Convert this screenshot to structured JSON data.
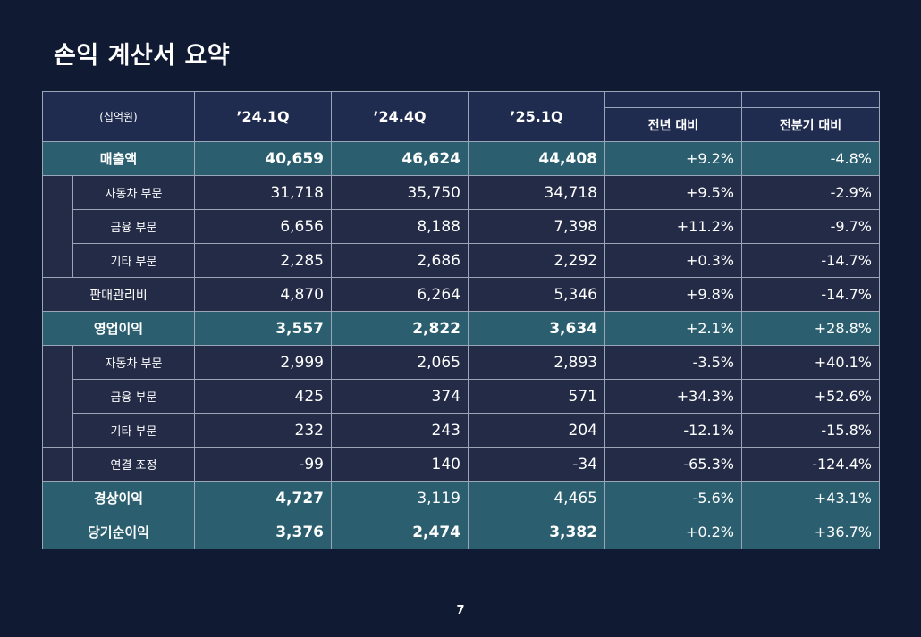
{
  "title": "손익 계산서 요약",
  "page_number": "7",
  "header": {
    "unit": "(십억원)",
    "q1": "’24.1Q",
    "q2": "’24.4Q",
    "q3": "’25.1Q",
    "yoy": "전년 대비",
    "qoq": "전분기 대비"
  },
  "rows": [
    {
      "label": "매출액",
      "v1": "40,659",
      "v2": "46,624",
      "v3": "44,408",
      "yoy": "+9.2%",
      "qoq": "-4.8%"
    },
    {
      "label": "자동차 부문",
      "v1": "31,718",
      "v2": "35,750",
      "v3": "34,718",
      "yoy": "+9.5%",
      "qoq": "-2.9%"
    },
    {
      "label": "금융 부문",
      "v1": "6,656",
      "v2": "8,188",
      "v3": "7,398",
      "yoy": "+11.2%",
      "qoq": "-9.7%"
    },
    {
      "label": "기타 부문",
      "v1": "2,285",
      "v2": "2,686",
      "v3": "2,292",
      "yoy": "+0.3%",
      "qoq": "-14.7%"
    },
    {
      "label": "판매관리비",
      "v1": "4,870",
      "v2": "6,264",
      "v3": "5,346",
      "yoy": "+9.8%",
      "qoq": "-14.7%"
    },
    {
      "label": "영업이익",
      "v1": "3,557",
      "v2": "2,822",
      "v3": "3,634",
      "yoy": "+2.1%",
      "qoq": "+28.8%"
    },
    {
      "label": "자동차 부문",
      "v1": "2,999",
      "v2": "2,065",
      "v3": "2,893",
      "yoy": "-3.5%",
      "qoq": "+40.1%"
    },
    {
      "label": "금융 부문",
      "v1": "425",
      "v2": "374",
      "v3": "571",
      "yoy": "+34.3%",
      "qoq": "+52.6%"
    },
    {
      "label": "기타 부문",
      "v1": "232",
      "v2": "243",
      "v3": "204",
      "yoy": "-12.1%",
      "qoq": "-15.8%"
    },
    {
      "label": "연결 조정",
      "v1": "-99",
      "v2": "140",
      "v3": "-34",
      "yoy": "-65.3%",
      "qoq": "-124.4%"
    },
    {
      "label": "경상이익",
      "v1": "4,727",
      "v2": "3,119",
      "v3": "4,465",
      "yoy": "-5.6%",
      "qoq": "+43.1%"
    },
    {
      "label": "당기순이익",
      "v1": "3,376",
      "v2": "2,474",
      "v3": "3,382",
      "yoy": "+0.2%",
      "qoq": "+36.7%"
    }
  ]
}
